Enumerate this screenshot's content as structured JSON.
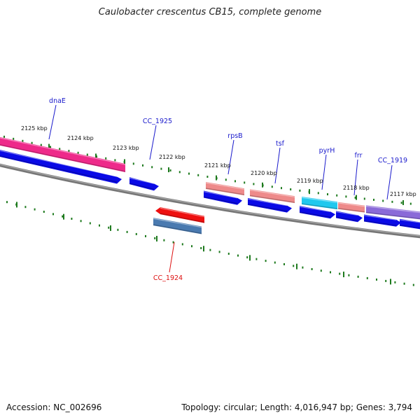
{
  "title": "Caulobacter crescentus CB15, complete genome",
  "footer": {
    "accession": "Accession: NC_002696",
    "summary": "Topology: circular; Length: 4,016,947 bp; Genes: 3,794"
  },
  "colors": {
    "backbone": "#808080",
    "tick": "#1e7a1e",
    "label_blue": "#1a1acc",
    "label_red": "#dd1111",
    "cds": "#0a0ae6",
    "dnaE": "#ee2a8a",
    "rrna_salmon": "#ee8a8a",
    "pyrH": "#20c8ee",
    "cc1919": "#8a6ad8",
    "cc1924_red": "#ee1010",
    "cc1924_steel": "#4a7ab0"
  },
  "tick_labels": [
    "2125 kbp",
    "2124 kbp",
    "2123 kbp",
    "2122 kbp",
    "2121 kbp",
    "2120 kbp",
    "2119 kbp",
    "2118 kbp",
    "2117 kbp"
  ],
  "gene_labels": [
    {
      "name": "dnaE",
      "color": "label_blue"
    },
    {
      "name": "CC_1925",
      "color": "label_blue"
    },
    {
      "name": "rpsB",
      "color": "label_blue"
    },
    {
      "name": "tsf",
      "color": "label_blue"
    },
    {
      "name": "pyrH",
      "color": "label_blue"
    },
    {
      "name": "frr",
      "color": "label_blue"
    },
    {
      "name": "CC_1919",
      "color": "label_blue"
    },
    {
      "name": "CC_1924",
      "color": "label_red"
    }
  ]
}
